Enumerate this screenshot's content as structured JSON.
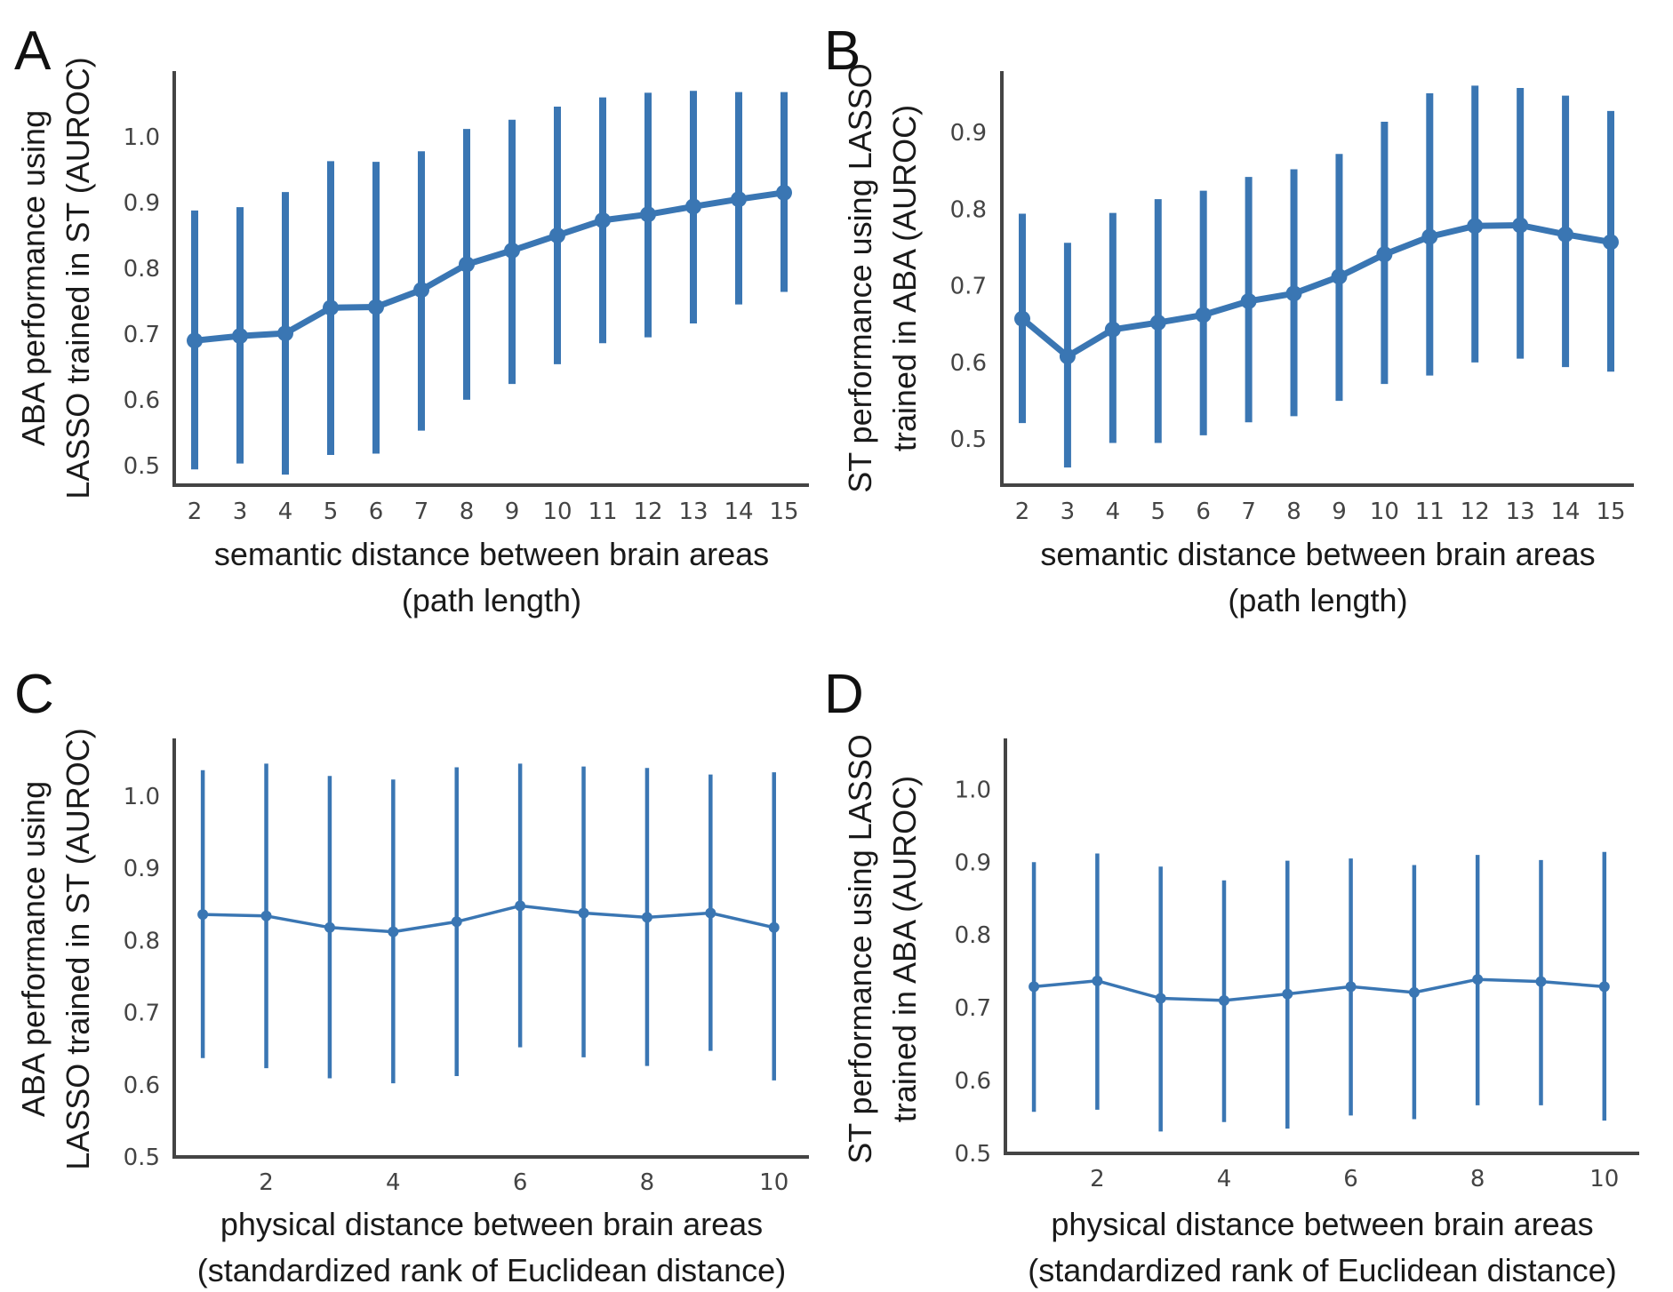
{
  "chart_data": [
    {
      "panel": "A",
      "type": "line",
      "x_type": "categorical",
      "title": "",
      "xlabel": [
        "semantic distance between brain areas",
        "(path length)"
      ],
      "ylabel": [
        "ABA performance using",
        "LASSO  trained in ST (AUROC)"
      ],
      "ylim": [
        0.47,
        1.1
      ],
      "yticks": [
        0.5,
        0.6,
        0.7,
        0.8,
        0.9,
        1.0
      ],
      "ytick_labels": [
        "0.5",
        "0.6",
        "0.7",
        "0.8",
        "0.9",
        "1.0"
      ],
      "x": [
        2,
        3,
        4,
        5,
        6,
        7,
        8,
        9,
        10,
        11,
        12,
        13,
        14,
        15
      ],
      "xtick_labels": [
        "2",
        "3",
        "4",
        "5",
        "6",
        "7",
        "8",
        "9",
        "10",
        "11",
        "12",
        "13",
        "14",
        "15"
      ],
      "series": [
        {
          "values": [
            0.69,
            0.697,
            0.701,
            0.74,
            0.741,
            0.767,
            0.806,
            0.827,
            0.85,
            0.873,
            0.882,
            0.894,
            0.905,
            0.915
          ],
          "err_low": [
            0.494,
            0.503,
            0.486,
            0.516,
            0.518,
            0.553,
            0.6,
            0.624,
            0.654,
            0.686,
            0.695,
            0.716,
            0.745,
            0.764
          ],
          "err_high": [
            0.888,
            0.893,
            0.916,
            0.963,
            0.962,
            0.978,
            1.012,
            1.026,
            1.046,
            1.06,
            1.067,
            1.07,
            1.068,
            1.068
          ]
        }
      ],
      "grid": false,
      "legend": "none",
      "color": "#3a76b3"
    },
    {
      "panel": "B",
      "type": "line",
      "x_type": "categorical",
      "title": "",
      "xlabel": [
        "semantic distance between brain areas",
        "(path length)"
      ],
      "ylabel": [
        "ST performance using LASSO",
        "trained in ABA (AUROC)"
      ],
      "ylim": [
        0.44,
        0.98
      ],
      "yticks": [
        0.5,
        0.6,
        0.7,
        0.8,
        0.9
      ],
      "ytick_labels": [
        "0.5",
        "0.6",
        "0.7",
        "0.8",
        "0.9"
      ],
      "x": [
        2,
        3,
        4,
        5,
        6,
        7,
        8,
        9,
        10,
        11,
        12,
        13,
        14,
        15
      ],
      "xtick_labels": [
        "2",
        "3",
        "4",
        "5",
        "6",
        "7",
        "8",
        "9",
        "10",
        "11",
        "12",
        "13",
        "14",
        "15"
      ],
      "series": [
        {
          "values": [
            0.657,
            0.608,
            0.643,
            0.652,
            0.662,
            0.68,
            0.69,
            0.712,
            0.741,
            0.764,
            0.778,
            0.779,
            0.767,
            0.757
          ],
          "err_low": [
            0.521,
            0.463,
            0.495,
            0.495,
            0.505,
            0.522,
            0.53,
            0.55,
            0.572,
            0.583,
            0.6,
            0.605,
            0.594,
            0.588
          ],
          "err_high": [
            0.794,
            0.756,
            0.795,
            0.813,
            0.824,
            0.842,
            0.852,
            0.872,
            0.914,
            0.951,
            0.961,
            0.958,
            0.948,
            0.928
          ]
        }
      ],
      "grid": false,
      "legend": "none",
      "color": "#3a76b3"
    },
    {
      "panel": "C",
      "type": "line",
      "x_type": "numeric",
      "title": "",
      "xlabel": [
        "physical distance between brain areas",
        "(standardized rank of Euclidean distance)"
      ],
      "ylabel": [
        "ABA performance using",
        "LASSO  trained in ST (AUROC)"
      ],
      "xlim": [
        0.55,
        10.55
      ],
      "ylim": [
        0.5,
        1.08
      ],
      "xticks": [
        2,
        4,
        6,
        8,
        10
      ],
      "xtick_labels": [
        "2",
        "4",
        "6",
        "8",
        "10"
      ],
      "yticks": [
        0.5,
        0.6,
        0.7,
        0.8,
        0.9,
        1.0
      ],
      "ytick_labels": [
        "0.5",
        "0.6",
        "0.7",
        "0.8",
        "0.9",
        "1.0"
      ],
      "x": [
        1,
        2,
        3,
        4,
        5,
        6,
        7,
        8,
        9,
        10
      ],
      "series": [
        {
          "values": [
            0.836,
            0.834,
            0.818,
            0.812,
            0.826,
            0.848,
            0.838,
            0.832,
            0.838,
            0.818
          ],
          "err_low": [
            0.637,
            0.623,
            0.609,
            0.602,
            0.612,
            0.652,
            0.638,
            0.626,
            0.647,
            0.606
          ],
          "err_high": [
            1.036,
            1.045,
            1.028,
            1.023,
            1.04,
            1.045,
            1.041,
            1.039,
            1.03,
            1.033
          ]
        }
      ],
      "grid": false,
      "legend": "none",
      "color": "#3a76b3"
    },
    {
      "panel": "D",
      "type": "line",
      "x_type": "numeric",
      "title": "",
      "xlabel": [
        "physical distance between brain areas",
        "(standardized rank of Euclidean distance)"
      ],
      "ylabel": [
        "ST performance using LASSO",
        "trained in ABA (AUROC)"
      ],
      "xlim": [
        0.55,
        10.55
      ],
      "ylim": [
        0.5,
        1.07
      ],
      "xticks": [
        2,
        4,
        6,
        8,
        10
      ],
      "xtick_labels": [
        "2",
        "4",
        "6",
        "8",
        "10"
      ],
      "yticks": [
        0.5,
        0.6,
        0.7,
        0.8,
        0.9,
        1.0
      ],
      "ytick_labels": [
        "0.5",
        "0.6",
        "0.7",
        "0.8",
        "0.9",
        "1.0"
      ],
      "x": [
        1,
        2,
        3,
        4,
        5,
        6,
        7,
        8,
        9,
        10
      ],
      "series": [
        {
          "values": [
            0.729,
            0.737,
            0.713,
            0.71,
            0.719,
            0.729,
            0.721,
            0.739,
            0.736,
            0.729
          ],
          "err_low": [
            0.557,
            0.56,
            0.53,
            0.543,
            0.534,
            0.552,
            0.547,
            0.566,
            0.566,
            0.545
          ],
          "err_high": [
            0.9,
            0.912,
            0.894,
            0.875,
            0.902,
            0.905,
            0.896,
            0.91,
            0.903,
            0.914
          ]
        }
      ],
      "grid": false,
      "legend": "none",
      "color": "#3a76b3"
    }
  ]
}
